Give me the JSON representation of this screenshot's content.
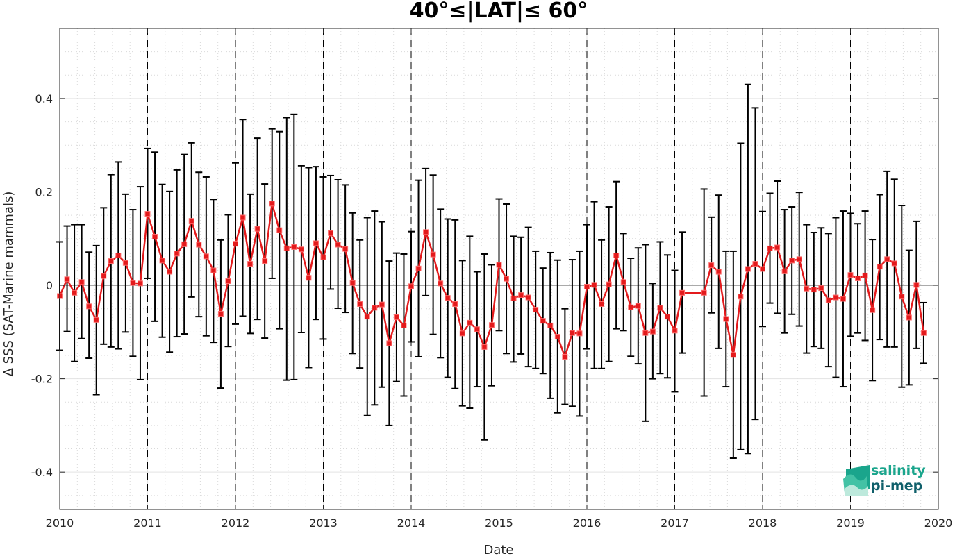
{
  "chart_data": {
    "type": "line",
    "title": "40°≤|LAT|≤ 60°",
    "xlabel": "Date",
    "ylabel": "Δ SSS (SAT-Marine mammals)",
    "xlim": [
      2010,
      2020
    ],
    "ylim": [
      -0.48,
      0.55
    ],
    "x_ticks": [
      "2010",
      "2011",
      "2012",
      "2013",
      "2014",
      "2015",
      "2016",
      "2017",
      "2018",
      "2019",
      "2020"
    ],
    "y_ticks": [
      {
        "value": 0.4,
        "label": "0.4"
      },
      {
        "value": 0.2,
        "label": "0.2"
      },
      {
        "value": 0,
        "label": "0"
      },
      {
        "value": -0.2,
        "label": "-0.2"
      },
      {
        "value": -0.4,
        "label": "-0.4"
      }
    ],
    "grid": true,
    "year_dividers": [
      2011,
      2012,
      2013,
      2014,
      2015,
      2016,
      2017,
      2018,
      2019
    ],
    "series_color": "#e31a1c",
    "errorbar_color": "#000000",
    "points": [
      {
        "x": "2010-01",
        "y": -0.023,
        "lo": -0.139,
        "hi": 0.093
      },
      {
        "x": "2010-02",
        "y": 0.013,
        "lo": -0.099,
        "hi": 0.127
      },
      {
        "x": "2010-03",
        "y": -0.016,
        "lo": -0.163,
        "hi": 0.13
      },
      {
        "x": "2010-04",
        "y": 0.007,
        "lo": -0.114,
        "hi": 0.13
      },
      {
        "x": "2010-05",
        "y": -0.045,
        "lo": -0.156,
        "hi": 0.071
      },
      {
        "x": "2010-06",
        "y": -0.074,
        "lo": -0.234,
        "hi": 0.085
      },
      {
        "x": "2010-07",
        "y": 0.02,
        "lo": -0.126,
        "hi": 0.166
      },
      {
        "x": "2010-08",
        "y": 0.052,
        "lo": -0.132,
        "hi": 0.237
      },
      {
        "x": "2010-09",
        "y": 0.064,
        "lo": -0.136,
        "hi": 0.264
      },
      {
        "x": "2010-10",
        "y": 0.048,
        "lo": -0.1,
        "hi": 0.195
      },
      {
        "x": "2010-11",
        "y": 0.005,
        "lo": -0.152,
        "hi": 0.162
      },
      {
        "x": "2010-12",
        "y": 0.004,
        "lo": -0.202,
        "hi": 0.211
      },
      {
        "x": "2011-01",
        "y": 0.153,
        "lo": 0.015,
        "hi": 0.293
      },
      {
        "x": "2011-02",
        "y": 0.104,
        "lo": -0.077,
        "hi": 0.285
      },
      {
        "x": "2011-03",
        "y": 0.053,
        "lo": -0.111,
        "hi": 0.216
      },
      {
        "x": "2011-04",
        "y": 0.029,
        "lo": -0.143,
        "hi": 0.201
      },
      {
        "x": "2011-05",
        "y": 0.068,
        "lo": -0.11,
        "hi": 0.247
      },
      {
        "x": "2011-06",
        "y": 0.088,
        "lo": -0.104,
        "hi": 0.28
      },
      {
        "x": "2011-07",
        "y": 0.138,
        "lo": -0.025,
        "hi": 0.305
      },
      {
        "x": "2011-08",
        "y": 0.087,
        "lo": -0.067,
        "hi": 0.242
      },
      {
        "x": "2011-09",
        "y": 0.062,
        "lo": -0.108,
        "hi": 0.232
      },
      {
        "x": "2011-10",
        "y": 0.032,
        "lo": -0.122,
        "hi": 0.184
      },
      {
        "x": "2011-11",
        "y": -0.061,
        "lo": -0.22,
        "hi": 0.097
      },
      {
        "x": "2011-12",
        "y": 0.009,
        "lo": -0.131,
        "hi": 0.151
      },
      {
        "x": "2012-01",
        "y": 0.089,
        "lo": -0.083,
        "hi": 0.262
      },
      {
        "x": "2012-02",
        "y": 0.145,
        "lo": -0.066,
        "hi": 0.355
      },
      {
        "x": "2012-03",
        "y": 0.046,
        "lo": -0.103,
        "hi": 0.195
      },
      {
        "x": "2012-04",
        "y": 0.121,
        "lo": -0.073,
        "hi": 0.315
      },
      {
        "x": "2012-05",
        "y": 0.052,
        "lo": -0.113,
        "hi": 0.217
      },
      {
        "x": "2012-06",
        "y": 0.175,
        "lo": 0.015,
        "hi": 0.335
      },
      {
        "x": "2012-07",
        "y": 0.118,
        "lo": -0.093,
        "hi": 0.329
      },
      {
        "x": "2012-08",
        "y": 0.079,
        "lo": -0.203,
        "hi": 0.359
      },
      {
        "x": "2012-09",
        "y": 0.082,
        "lo": -0.202,
        "hi": 0.366
      },
      {
        "x": "2012-10",
        "y": 0.077,
        "lo": -0.101,
        "hi": 0.256
      },
      {
        "x": "2012-11",
        "y": 0.016,
        "lo": -0.176,
        "hi": 0.252
      },
      {
        "x": "2012-12",
        "y": 0.09,
        "lo": -0.073,
        "hi": 0.254
      },
      {
        "x": "2013-01",
        "y": 0.06,
        "lo": -0.115,
        "hi": 0.232
      },
      {
        "x": "2013-02",
        "y": 0.112,
        "lo": -0.008,
        "hi": 0.235
      },
      {
        "x": "2013-03",
        "y": 0.087,
        "lo": -0.049,
        "hi": 0.226
      },
      {
        "x": "2013-04",
        "y": 0.078,
        "lo": -0.058,
        "hi": 0.215
      },
      {
        "x": "2013-05",
        "y": 0.005,
        "lo": -0.146,
        "hi": 0.155
      },
      {
        "x": "2013-06",
        "y": -0.04,
        "lo": -0.177,
        "hi": 0.097
      },
      {
        "x": "2013-07",
        "y": -0.067,
        "lo": -0.279,
        "hi": 0.145
      },
      {
        "x": "2013-08",
        "y": -0.048,
        "lo": -0.256,
        "hi": 0.159
      },
      {
        "x": "2013-09",
        "y": -0.041,
        "lo": -0.218,
        "hi": 0.136
      },
      {
        "x": "2013-10",
        "y": -0.124,
        "lo": -0.3,
        "hi": 0.052
      },
      {
        "x": "2013-11",
        "y": -0.068,
        "lo": -0.206,
        "hi": 0.069
      },
      {
        "x": "2013-12",
        "y": -0.086,
        "lo": -0.237,
        "hi": 0.067
      },
      {
        "x": "2014-01",
        "y": -0.002,
        "lo": -0.121,
        "hi": 0.115
      },
      {
        "x": "2014-02",
        "y": 0.036,
        "lo": -0.153,
        "hi": 0.225
      },
      {
        "x": "2014-03",
        "y": 0.114,
        "lo": -0.022,
        "hi": 0.25
      },
      {
        "x": "2014-04",
        "y": 0.066,
        "lo": -0.105,
        "hi": 0.236
      },
      {
        "x": "2014-05",
        "y": 0.004,
        "lo": -0.155,
        "hi": 0.163
      },
      {
        "x": "2014-06",
        "y": -0.027,
        "lo": -0.197,
        "hi": 0.142
      },
      {
        "x": "2014-07",
        "y": -0.04,
        "lo": -0.221,
        "hi": 0.14
      },
      {
        "x": "2014-08",
        "y": -0.103,
        "lo": -0.258,
        "hi": 0.053
      },
      {
        "x": "2014-09",
        "y": -0.08,
        "lo": -0.263,
        "hi": 0.105
      },
      {
        "x": "2014-10",
        "y": -0.094,
        "lo": -0.217,
        "hi": 0.029
      },
      {
        "x": "2014-11",
        "y": -0.132,
        "lo": -0.331,
        "hi": 0.067
      },
      {
        "x": "2014-12",
        "y": -0.085,
        "lo": -0.215,
        "hi": 0.044
      },
      {
        "x": "2015-01",
        "y": 0.044,
        "lo": -0.097,
        "hi": 0.185
      },
      {
        "x": "2015-02",
        "y": 0.014,
        "lo": -0.146,
        "hi": 0.174
      },
      {
        "x": "2015-03",
        "y": -0.028,
        "lo": -0.164,
        "hi": 0.105
      },
      {
        "x": "2015-04",
        "y": -0.021,
        "lo": -0.147,
        "hi": 0.103
      },
      {
        "x": "2015-05",
        "y": -0.026,
        "lo": -0.174,
        "hi": 0.124
      },
      {
        "x": "2015-06",
        "y": -0.052,
        "lo": -0.178,
        "hi": 0.073
      },
      {
        "x": "2015-07",
        "y": -0.076,
        "lo": -0.189,
        "hi": 0.037
      },
      {
        "x": "2015-08",
        "y": -0.086,
        "lo": -0.242,
        "hi": 0.07
      },
      {
        "x": "2015-09",
        "y": -0.11,
        "lo": -0.273,
        "hi": 0.054
      },
      {
        "x": "2015-10",
        "y": -0.153,
        "lo": -0.255,
        "hi": -0.05
      },
      {
        "x": "2015-11",
        "y": -0.102,
        "lo": -0.259,
        "hi": 0.055
      },
      {
        "x": "2015-12",
        "y": -0.103,
        "lo": -0.28,
        "hi": 0.073
      },
      {
        "x": "2016-01",
        "y": -0.003,
        "lo": -0.136,
        "hi": 0.13
      },
      {
        "x": "2016-02",
        "y": 0.001,
        "lo": -0.178,
        "hi": 0.179
      },
      {
        "x": "2016-03",
        "y": -0.04,
        "lo": -0.178,
        "hi": 0.097
      },
      {
        "x": "2016-04",
        "y": 0.002,
        "lo": -0.163,
        "hi": 0.168
      },
      {
        "x": "2016-05",
        "y": 0.064,
        "lo": -0.093,
        "hi": 0.222
      },
      {
        "x": "2016-06",
        "y": 0.007,
        "lo": -0.097,
        "hi": 0.111
      },
      {
        "x": "2016-07",
        "y": -0.047,
        "lo": -0.152,
        "hi": 0.058
      },
      {
        "x": "2016-08",
        "y": -0.044,
        "lo": -0.168,
        "hi": 0.08
      },
      {
        "x": "2016-09",
        "y": -0.102,
        "lo": -0.291,
        "hi": 0.087
      },
      {
        "x": "2016-10",
        "y": -0.099,
        "lo": -0.2,
        "hi": 0.004
      },
      {
        "x": "2016-11",
        "y": -0.048,
        "lo": -0.189,
        "hi": 0.093
      },
      {
        "x": "2016-12",
        "y": -0.067,
        "lo": -0.198,
        "hi": 0.065
      },
      {
        "x": "2017-01",
        "y": -0.097,
        "lo": -0.228,
        "hi": 0.032
      },
      {
        "x": "2017-02",
        "y": -0.016,
        "lo": -0.145,
        "hi": 0.114
      },
      {
        "x": "2017-05",
        "y": -0.016,
        "lo": -0.237,
        "hi": 0.206
      },
      {
        "x": "2017-06",
        "y": 0.043,
        "lo": -0.059,
        "hi": 0.146
      },
      {
        "x": "2017-07",
        "y": 0.029,
        "lo": -0.135,
        "hi": 0.193
      },
      {
        "x": "2017-08",
        "y": -0.072,
        "lo": -0.217,
        "hi": 0.073
      },
      {
        "x": "2017-09",
        "y": -0.149,
        "lo": -0.37,
        "hi": 0.073
      },
      {
        "x": "2017-10",
        "y": -0.024,
        "lo": -0.352,
        "hi": 0.304
      },
      {
        "x": "2017-11",
        "y": 0.035,
        "lo": -0.36,
        "hi": 0.43
      },
      {
        "x": "2017-12",
        "y": 0.046,
        "lo": -0.287,
        "hi": 0.38
      },
      {
        "x": "2018-01",
        "y": 0.035,
        "lo": -0.088,
        "hi": 0.158
      },
      {
        "x": "2018-02",
        "y": 0.079,
        "lo": -0.038,
        "hi": 0.197
      },
      {
        "x": "2018-03",
        "y": 0.081,
        "lo": -0.06,
        "hi": 0.223
      },
      {
        "x": "2018-04",
        "y": 0.03,
        "lo": -0.102,
        "hi": 0.162
      },
      {
        "x": "2018-05",
        "y": 0.053,
        "lo": -0.062,
        "hi": 0.168
      },
      {
        "x": "2018-06",
        "y": 0.056,
        "lo": -0.087,
        "hi": 0.199
      },
      {
        "x": "2018-07",
        "y": -0.007,
        "lo": -0.145,
        "hi": 0.13
      },
      {
        "x": "2018-08",
        "y": -0.009,
        "lo": -0.131,
        "hi": 0.113
      },
      {
        "x": "2018-09",
        "y": -0.006,
        "lo": -0.135,
        "hi": 0.123
      },
      {
        "x": "2018-10",
        "y": -0.032,
        "lo": -0.174,
        "hi": 0.111
      },
      {
        "x": "2018-11",
        "y": -0.026,
        "lo": -0.197,
        "hi": 0.145
      },
      {
        "x": "2018-12",
        "y": -0.029,
        "lo": -0.217,
        "hi": 0.159
      },
      {
        "x": "2019-01",
        "y": 0.022,
        "lo": -0.109,
        "hi": 0.154
      },
      {
        "x": "2019-02",
        "y": 0.015,
        "lo": -0.102,
        "hi": 0.132
      },
      {
        "x": "2019-03",
        "y": 0.021,
        "lo": -0.118,
        "hi": 0.159
      },
      {
        "x": "2019-04",
        "y": -0.053,
        "lo": -0.204,
        "hi": 0.098
      },
      {
        "x": "2019-05",
        "y": 0.04,
        "lo": -0.116,
        "hi": 0.194
      },
      {
        "x": "2019-06",
        "y": 0.056,
        "lo": -0.132,
        "hi": 0.244
      },
      {
        "x": "2019-07",
        "y": 0.047,
        "lo": -0.132,
        "hi": 0.227
      },
      {
        "x": "2019-08",
        "y": -0.024,
        "lo": -0.218,
        "hi": 0.171
      },
      {
        "x": "2019-09",
        "y": -0.069,
        "lo": -0.213,
        "hi": 0.075
      },
      {
        "x": "2019-10",
        "y": 0.001,
        "lo": -0.135,
        "hi": 0.137
      },
      {
        "x": "2019-11",
        "y": -0.102,
        "lo": -0.167,
        "hi": -0.037
      }
    ]
  },
  "logo": {
    "line1": "salinity",
    "line2": "pi-mep"
  }
}
